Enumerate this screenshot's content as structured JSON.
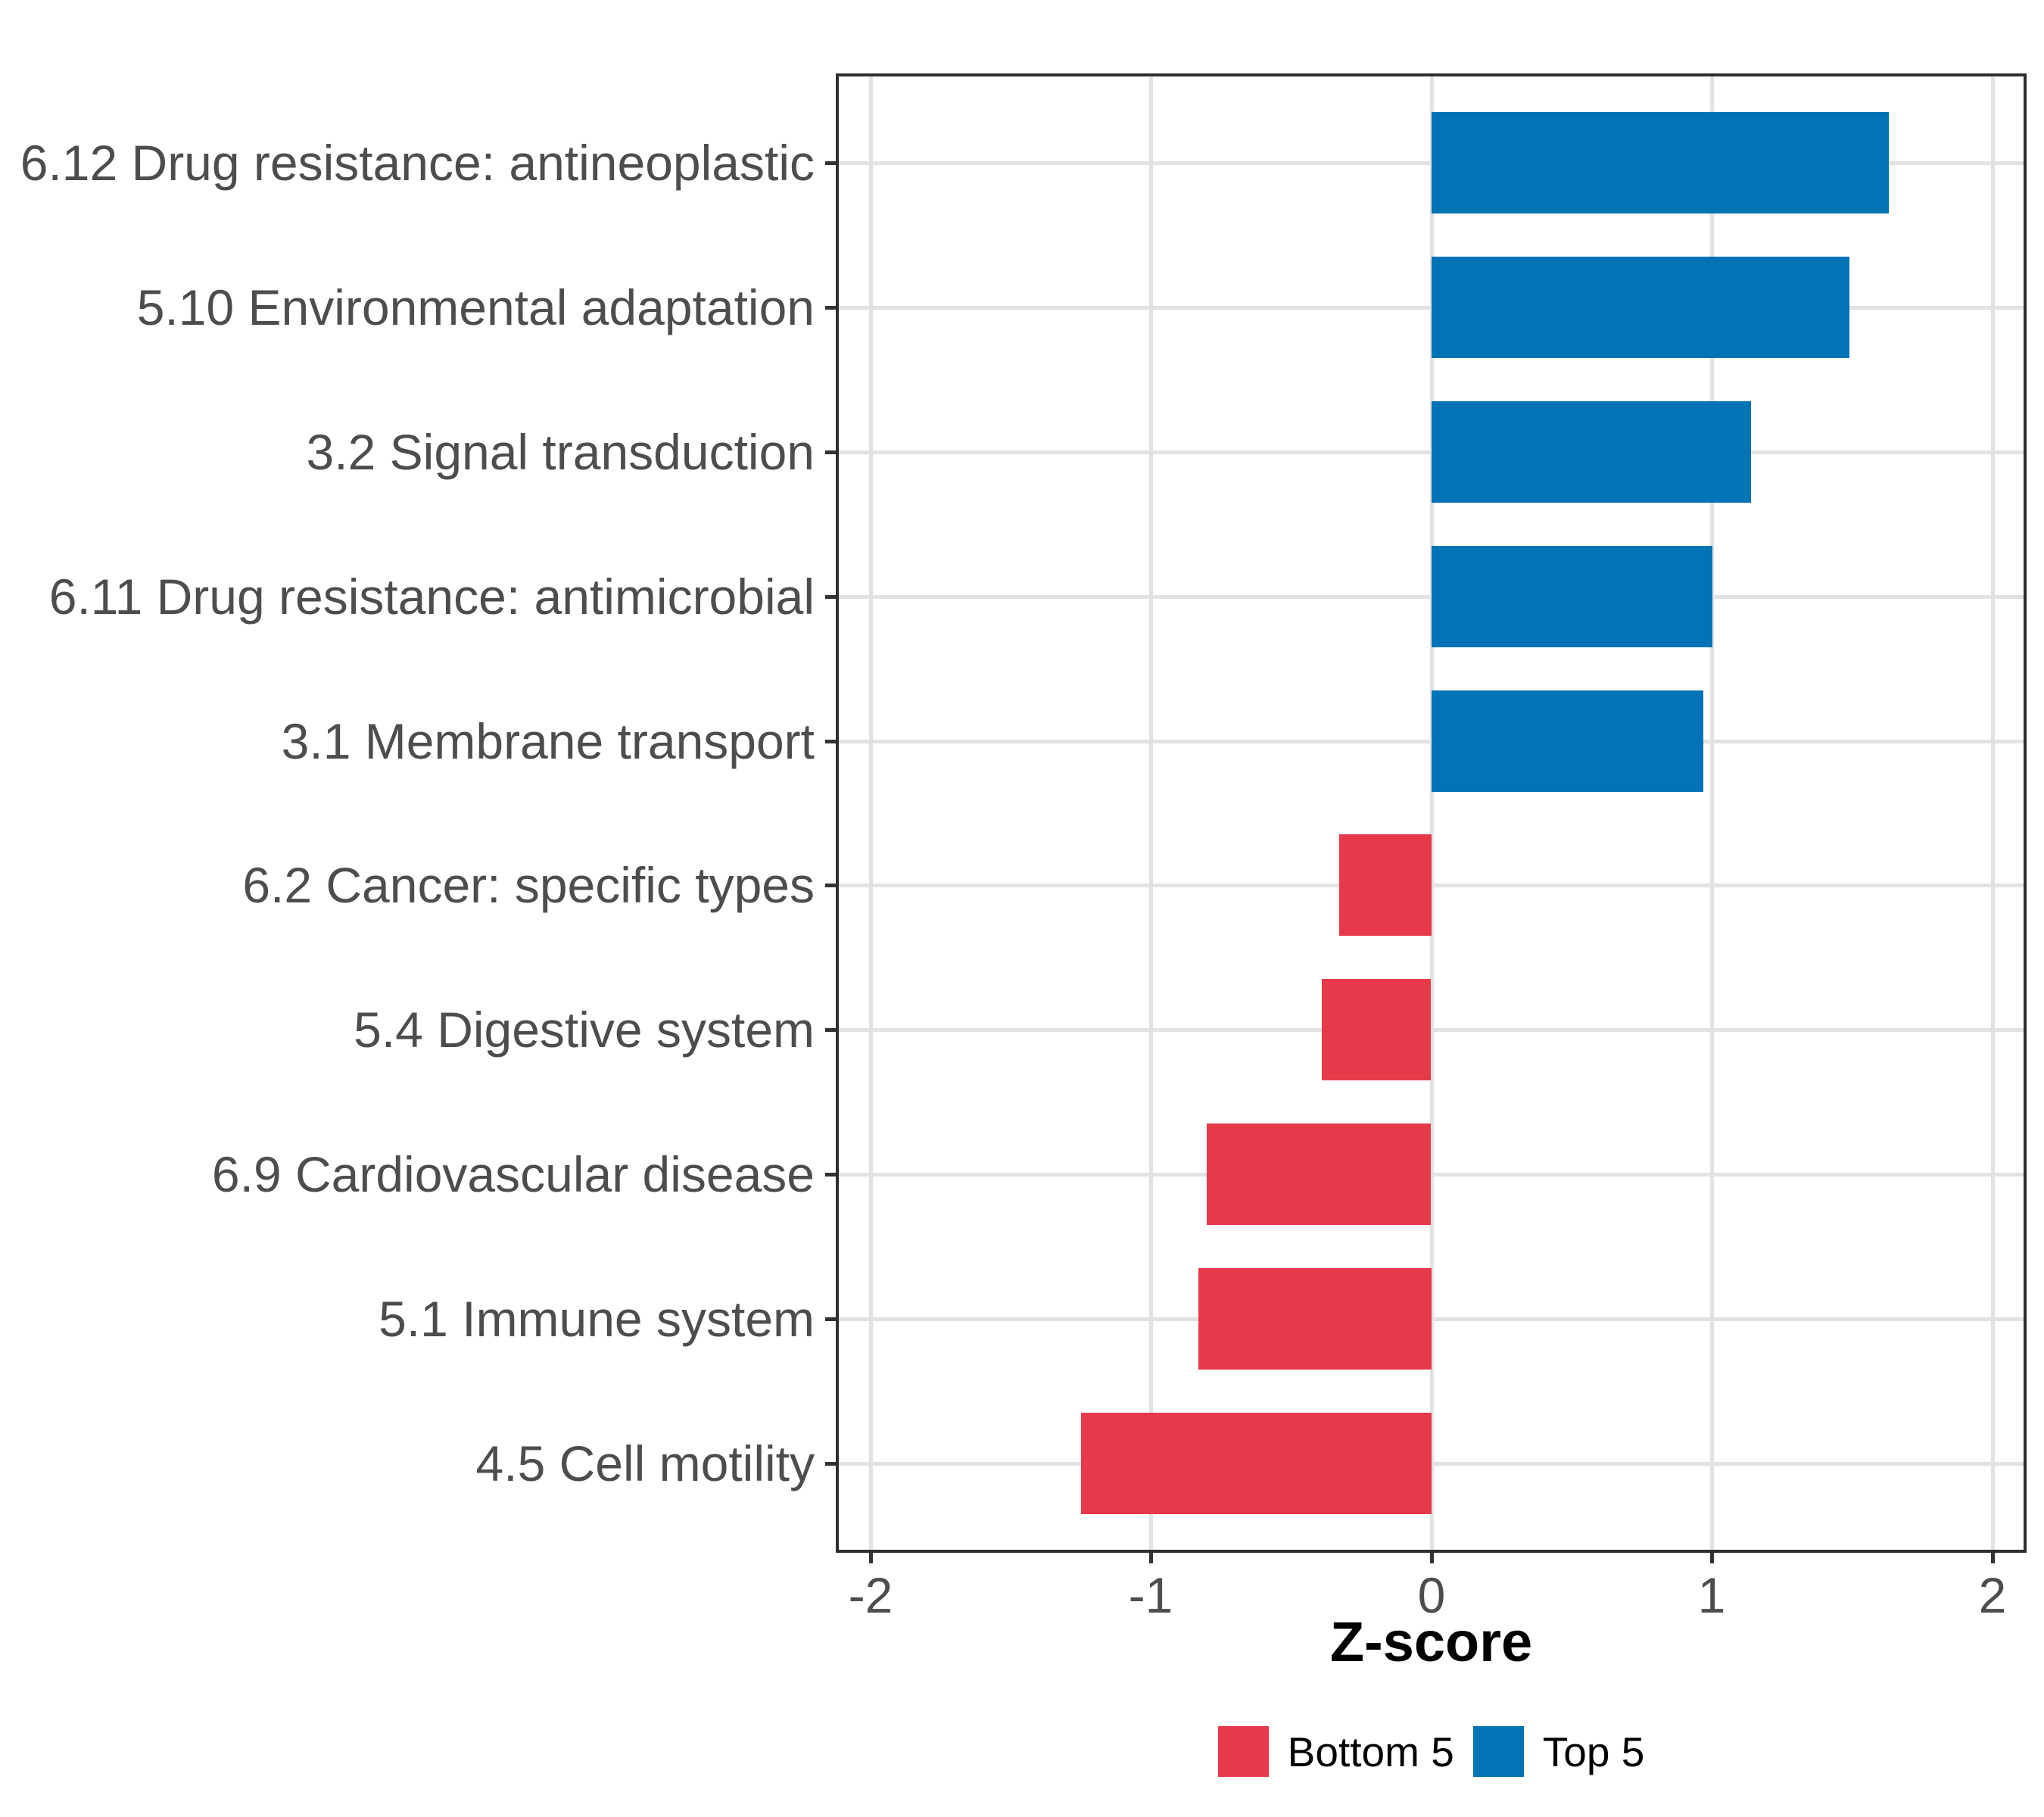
{
  "chart_data": {
    "type": "bar",
    "orientation": "horizontal",
    "title": "",
    "xlabel": "Z-score",
    "ylabel": "",
    "categories": [
      "6.12 Drug resistance: antineoplastic",
      "5.10 Environmental adaptation",
      "3.2 Signal transduction",
      "6.11 Drug resistance: antimicrobial",
      "3.1 Membrane transport",
      "6.2 Cancer: specific types",
      "5.4 Digestive system",
      "6.9 Cardiovascular disease",
      "5.1 Immune system",
      "4.5 Cell motility"
    ],
    "values": [
      1.63,
      1.49,
      1.14,
      1.0,
      0.97,
      -0.33,
      -0.39,
      -0.8,
      -0.83,
      -1.25
    ],
    "groups": [
      "top5",
      "top5",
      "top5",
      "top5",
      "top5",
      "bottom5",
      "bottom5",
      "bottom5",
      "bottom5",
      "bottom5"
    ],
    "series": [
      {
        "name": "Top 5",
        "color": "#0273b5",
        "values": [
          1.63,
          1.49,
          1.14,
          1.0,
          0.97
        ]
      },
      {
        "name": "Bottom 5",
        "color": "#e6394a",
        "values": [
          -0.33,
          -0.39,
          -0.8,
          -0.83,
          -1.25
        ]
      }
    ],
    "xlim": [
      -2.113,
      2.111
    ],
    "x_ticks": [
      -2,
      -1,
      0,
      1,
      2
    ],
    "x_tick_labels": [
      "-2",
      "-1",
      "0",
      "1",
      "2"
    ],
    "bar_rel_width": 0.7,
    "grid": "major-only",
    "legend_position": "bottom",
    "legend": [
      {
        "label": "Bottom 5",
        "color": "#e6394a",
        "key": "bottom5"
      },
      {
        "label": "Top 5",
        "color": "#0273b5",
        "key": "top5"
      }
    ],
    "colors": {
      "bottom5": "#e6394a",
      "top5": "#0273b5",
      "axis_text": "#4d4d4d",
      "gridline": "#e2e2e2",
      "panel_border": "#2e2e2e",
      "tick": "#333333",
      "background": "#ffffff"
    }
  }
}
